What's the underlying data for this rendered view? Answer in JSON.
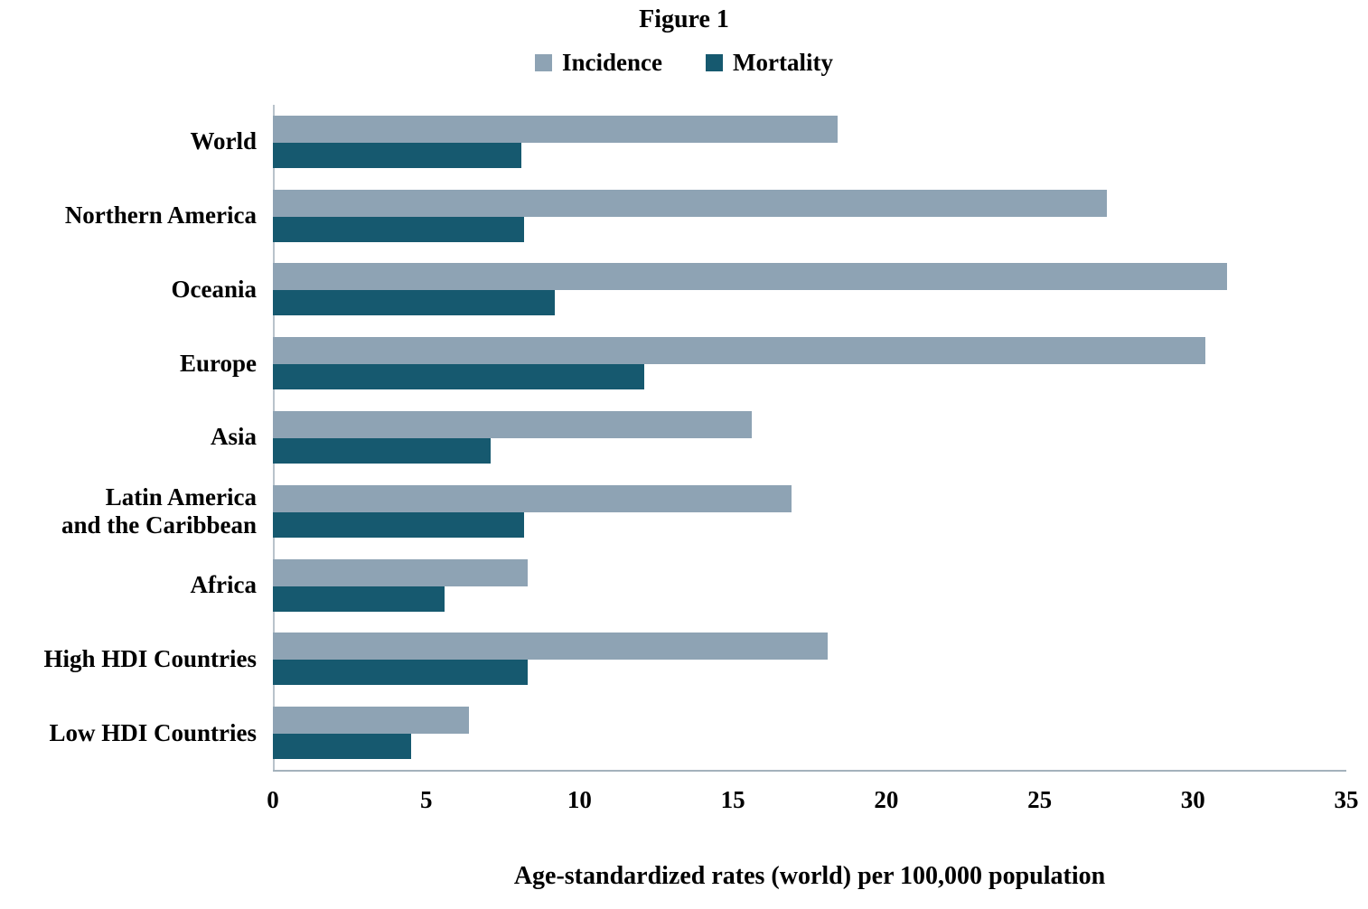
{
  "chart_data": {
    "type": "bar",
    "orientation": "horizontal",
    "title": "Figure 1",
    "xlabel": "Age-standardized rates (world) per 100,000 population",
    "categories": [
      "World",
      "Northern America",
      "Oceania",
      "Europe",
      "Asia",
      "Latin America\nand the Caribbean",
      "Africa",
      "High HDI Countries",
      "Low HDI Countries"
    ],
    "series": [
      {
        "name": "Incidence",
        "color": "#8EA3B4",
        "values": [
          18.4,
          27.2,
          31.1,
          30.4,
          15.6,
          16.9,
          8.3,
          18.1,
          6.4
        ]
      },
      {
        "name": "Mortality",
        "color": "#16596F",
        "values": [
          8.1,
          8.2,
          9.2,
          12.1,
          7.1,
          8.2,
          5.6,
          8.3,
          4.5
        ]
      }
    ],
    "xlim": [
      0,
      35
    ],
    "xticks": [
      0,
      5,
      10,
      15,
      20,
      25,
      30,
      35
    ],
    "grid": false,
    "legend_position": "top"
  }
}
